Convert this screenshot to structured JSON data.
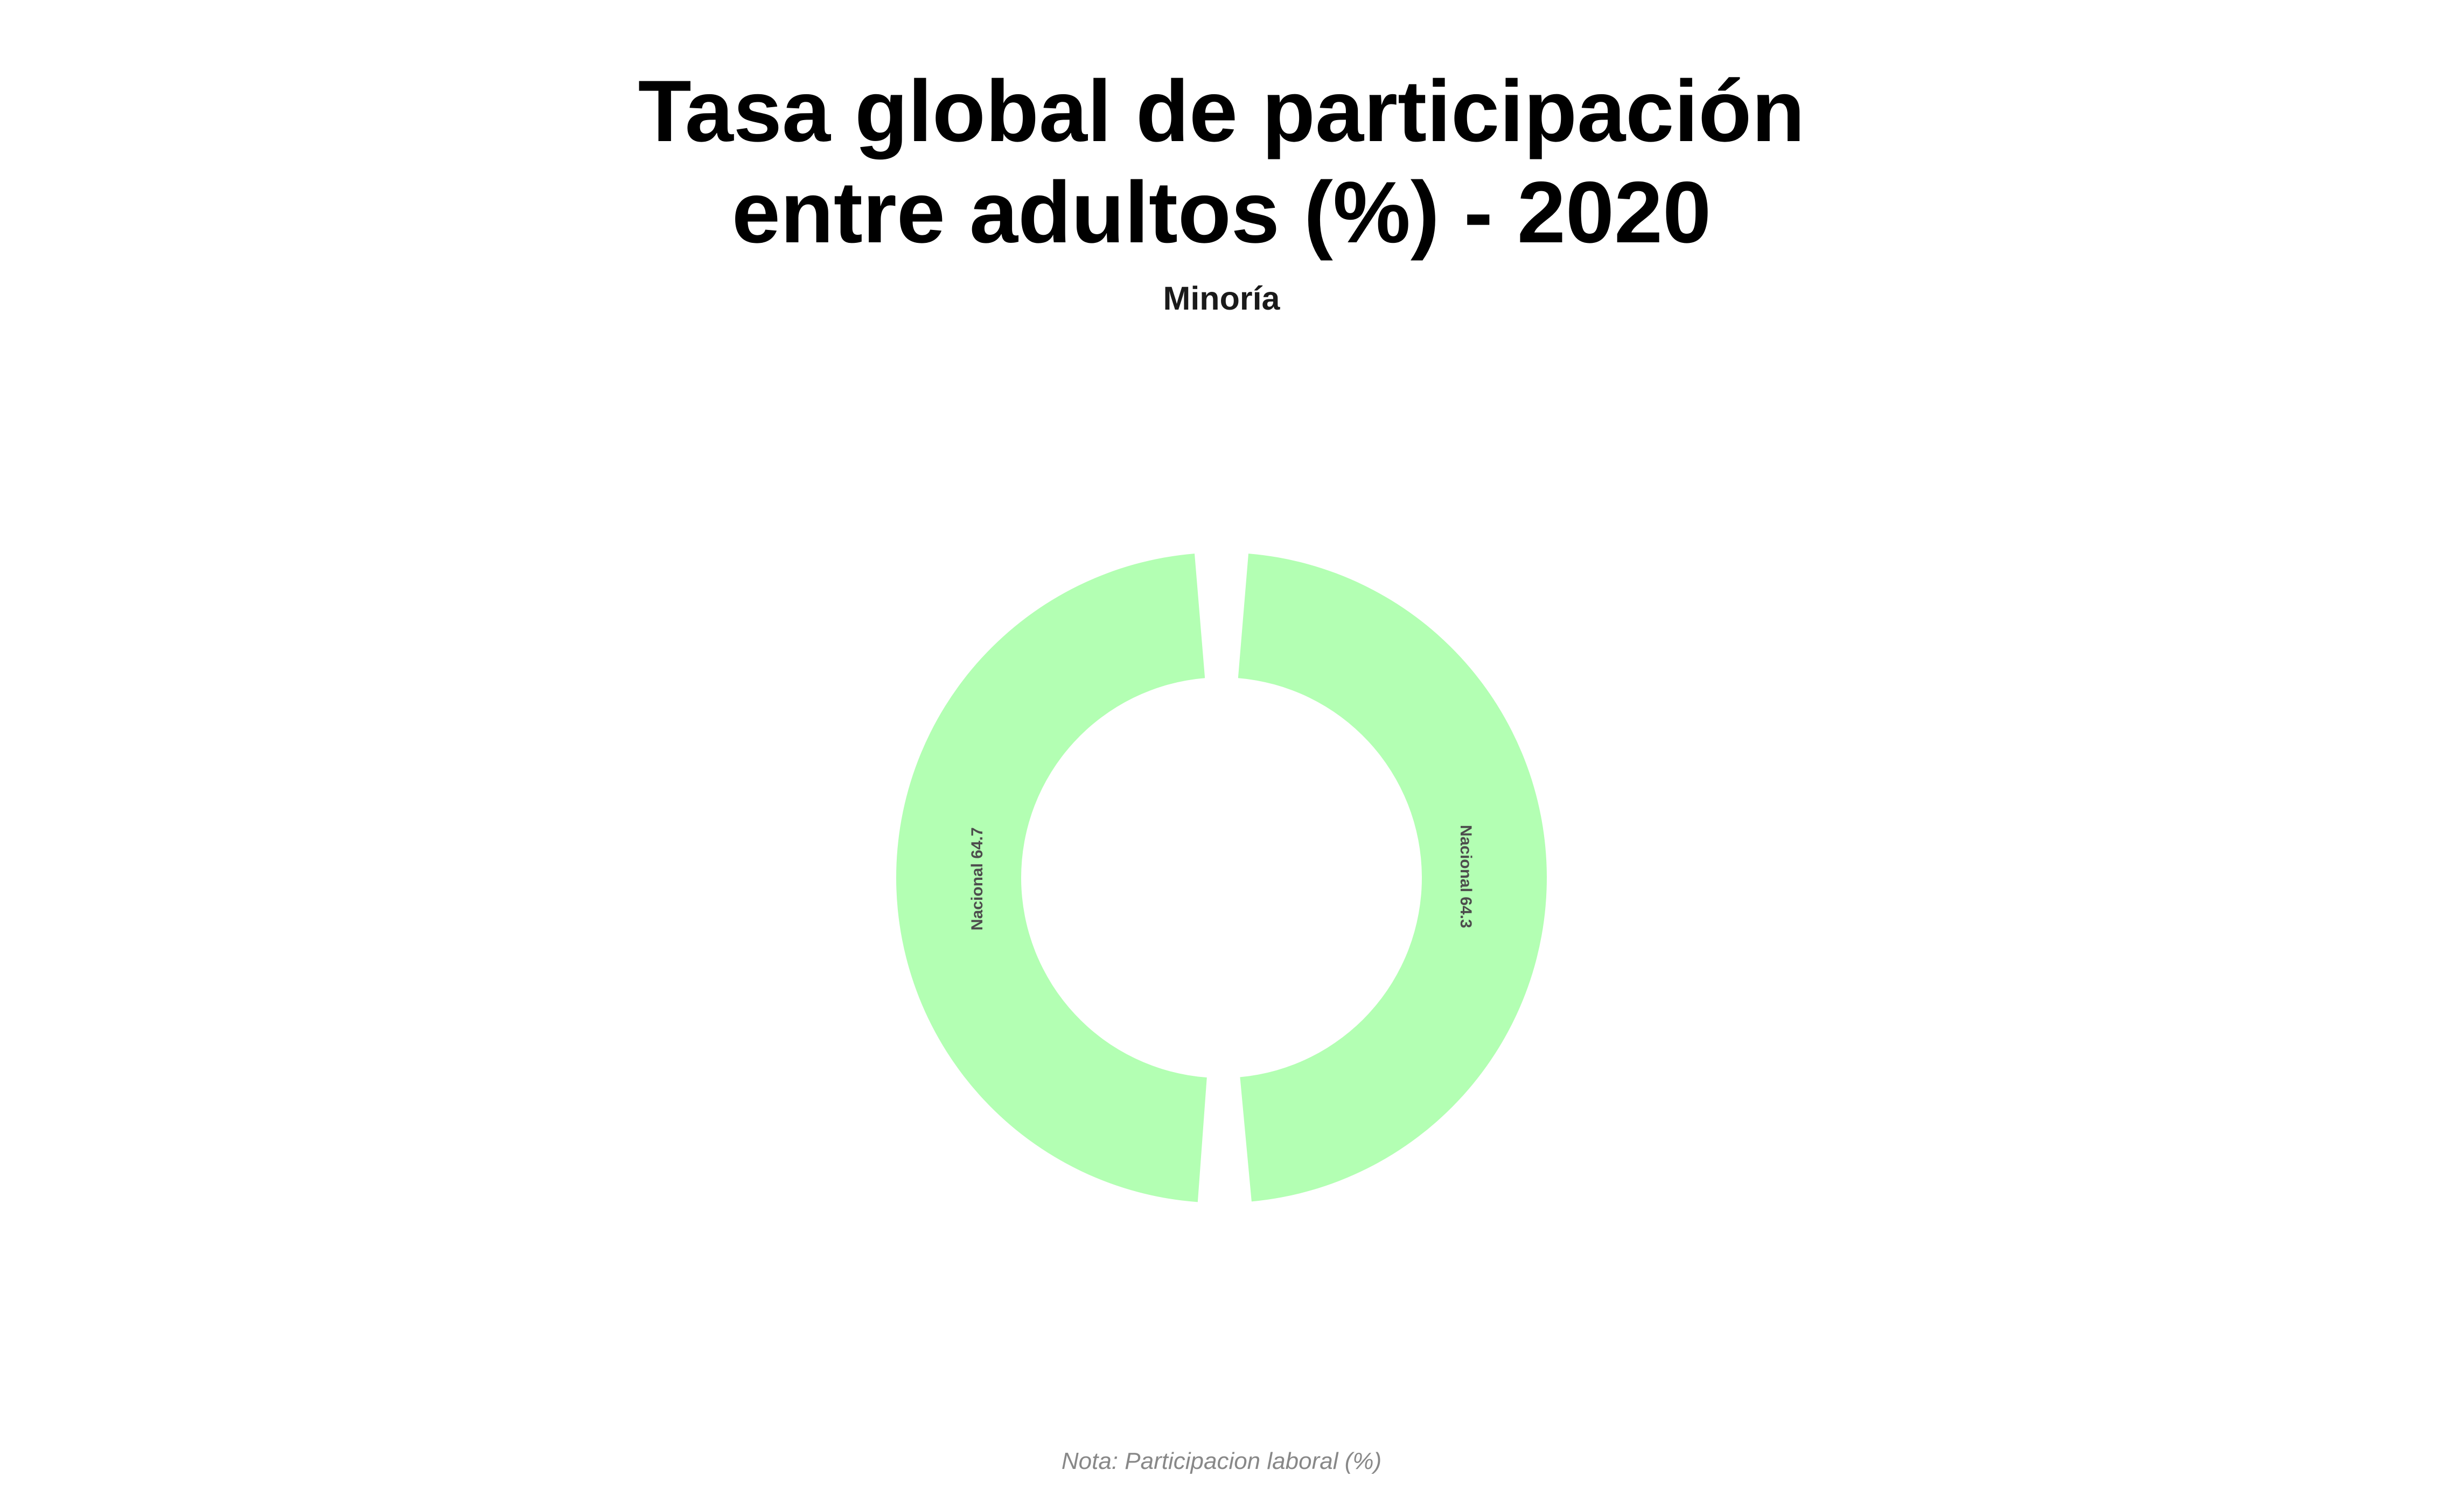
{
  "chart_data": {
    "type": "pie",
    "variant": "donut",
    "title_lines": [
      "Tasa global de participación",
      "entre adultos (%) - 2020"
    ],
    "subtitle": "Minoría",
    "note": "Nota: Participacion laboral (%)",
    "slices": [
      {
        "label": "Nacional 64.7",
        "value": 64.7,
        "color": "#b3ffb3"
      },
      {
        "label": "Nacional 64.3",
        "value": 64.3,
        "color": "#b3ffb3"
      }
    ],
    "legend": "none",
    "grid": false
  }
}
